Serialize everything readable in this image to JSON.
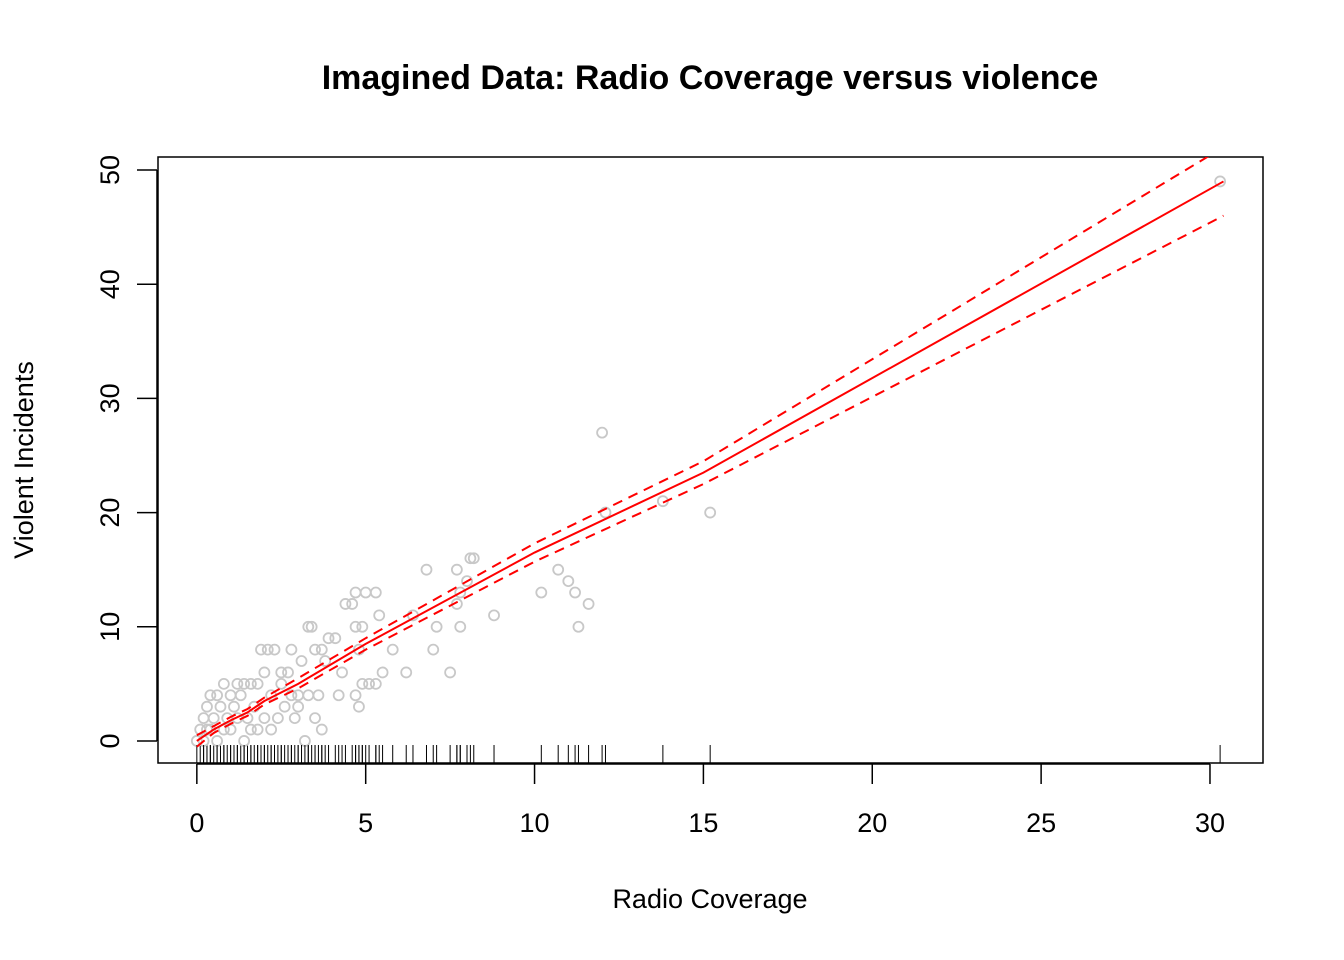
{
  "chart_data": {
    "type": "scatter",
    "title": "Imagined Data: Radio Coverage versus violence",
    "x_label": "Radio Coverage",
    "y_label": "Violent Incidents",
    "xlim": [
      -1.15,
      31.57
    ],
    "ylim": [
      -1.93,
      51.14
    ],
    "xticks": [
      0,
      5,
      10,
      15,
      20,
      25,
      30
    ],
    "yticks": [
      0,
      10,
      20,
      30,
      40,
      50
    ],
    "rug": true,
    "series": [
      {
        "style": "points",
        "color": "#c8c8c8",
        "x": [
          30.3,
          12,
          12.1,
          15.2,
          13.8,
          10.2,
          10.7,
          11,
          11.2,
          11.6,
          11.3,
          8.8,
          8.2,
          8.1,
          8,
          7.8,
          7.7,
          7.8,
          7.7,
          6.8,
          7,
          7.1,
          7.5,
          6.4,
          6.2,
          5.8,
          5.5,
          5.4,
          5.3,
          5,
          4.7,
          4.6,
          4.4,
          4.7,
          4.9,
          4.8,
          5.1,
          4.9,
          4.8,
          4.7,
          5.3,
          4.2,
          4.3,
          4.1,
          3.9,
          3.8,
          3.7,
          3.5,
          3.4,
          3.3,
          3.6,
          3.7,
          3.2,
          3.5,
          3.3,
          3.1,
          2.8,
          2.7,
          2.5,
          2.3,
          2.1,
          1.9,
          2,
          1.8,
          1.6,
          1.4,
          1.2,
          1,
          0.8,
          0.6,
          0.4,
          0.3,
          0.2,
          0.1,
          0,
          0.5,
          0.7,
          0.9,
          1.1,
          1.3,
          1.5,
          1.7,
          2.2,
          2.4,
          2.6,
          2.9,
          3,
          0.3,
          0.6,
          1,
          1.4,
          1.8,
          2.2,
          0.8,
          1.2,
          2,
          2.5,
          3,
          0.2,
          0.4,
          1.6,
          2.8
        ],
        "values": [
          49,
          27,
          20,
          20,
          21,
          13,
          15,
          14,
          13,
          12,
          10,
          11,
          16,
          16,
          14,
          13,
          15,
          10,
          12,
          15,
          8,
          10,
          6,
          11,
          6,
          8,
          6,
          11,
          13,
          13,
          13,
          12,
          12,
          10,
          10,
          8,
          5,
          5,
          3,
          4,
          5,
          4,
          6,
          9,
          9,
          7,
          8,
          8,
          10,
          10,
          4,
          1,
          0,
          2,
          4,
          7,
          8,
          6,
          6,
          8,
          8,
          8,
          6,
          5,
          5,
          5,
          5,
          4,
          5,
          4,
          4,
          3,
          2,
          1,
          0,
          2,
          3,
          2,
          3,
          4,
          2,
          3,
          4,
          2,
          3,
          2,
          3,
          1,
          0,
          1,
          0,
          1,
          1,
          1,
          2,
          2,
          5,
          4,
          0,
          1,
          1,
          4
        ]
      },
      {
        "style": "solid",
        "color": "#ff0000",
        "x": [
          0,
          0.5,
          1,
          1.5,
          2,
          3,
          5,
          10,
          15,
          30.4
        ],
        "values": [
          0,
          1,
          1.8,
          2.5,
          3.5,
          5,
          8.5,
          16.5,
          23.5,
          49
        ]
      },
      {
        "style": "dashed",
        "color": "#ff0000",
        "x": [
          0,
          0.5,
          1,
          1.5,
          2,
          3,
          5,
          10,
          15,
          30.4
        ],
        "values": [
          0.5,
          1.3,
          2.1,
          2.8,
          3.8,
          5.5,
          9,
          17.3,
          24.5,
          52
        ]
      },
      {
        "style": "dashed",
        "color": "#ff0000",
        "x": [
          0,
          0.5,
          1,
          1.5,
          2,
          3,
          5,
          10,
          15,
          30.4
        ],
        "values": [
          -0.5,
          0.7,
          1.5,
          2.2,
          3.2,
          4.6,
          8,
          15.7,
          22.5,
          46
        ]
      }
    ]
  }
}
